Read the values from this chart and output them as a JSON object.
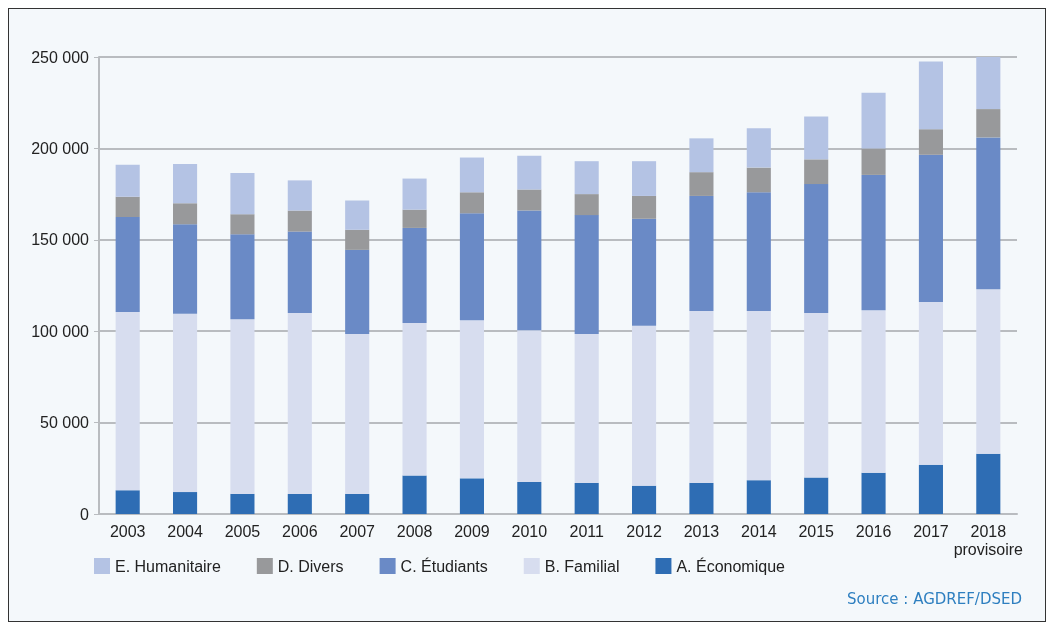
{
  "chart_data": {
    "type": "bar",
    "stacked": true,
    "categories": [
      "2003",
      "2004",
      "2005",
      "2006",
      "2007",
      "2008",
      "2009",
      "2010",
      "2011",
      "2012",
      "2013",
      "2014",
      "2015",
      "2016",
      "2017",
      "2018\nprovisoire"
    ],
    "series": [
      {
        "name": "A. Économique",
        "color": "#2e6db4",
        "values": [
          13000,
          12000,
          11000,
          11000,
          11000,
          21000,
          19500,
          17500,
          17000,
          15500,
          17000,
          18500,
          20000,
          22500,
          27000,
          33000
        ]
      },
      {
        "name": "B. Familial",
        "color": "#d7ddef",
        "values": [
          97500,
          97500,
          95500,
          99000,
          87500,
          83500,
          86500,
          83000,
          81500,
          87500,
          94000,
          92500,
          90000,
          89000,
          89000,
          90000
        ]
      },
      {
        "name": "C. Étudiants",
        "color": "#6a8ac6",
        "values": [
          52000,
          49000,
          46500,
          44500,
          46000,
          52000,
          58500,
          65500,
          65000,
          58500,
          63000,
          65000,
          70500,
          74000,
          80500,
          83000
        ]
      },
      {
        "name": "D. Divers",
        "color": "#98999b",
        "values": [
          11000,
          11500,
          11000,
          11500,
          11000,
          10000,
          11500,
          11500,
          11500,
          12500,
          13000,
          13500,
          13500,
          14500,
          14000,
          15500
        ]
      },
      {
        "name": "E. Humanitaire",
        "color": "#b4c3e4",
        "values": [
          17500,
          21500,
          22500,
          16500,
          16000,
          17000,
          19000,
          18500,
          18000,
          19000,
          18500,
          21500,
          23500,
          30500,
          37000,
          28500
        ]
      }
    ],
    "ylim": [
      0,
      250000
    ],
    "yticks": [
      0,
      {
        "value": 50000,
        "label": "50 000"
      },
      {
        "value": 100000,
        "label": "100 000"
      },
      {
        "value": 150000,
        "label": "150 000"
      },
      {
        "value": 200000,
        "label": "200 000"
      },
      {
        "value": 250000,
        "label": "250 000"
      }
    ],
    "grid": "y",
    "legend": "bottom",
    "annotations": [
      "Source : AGDREF/DSED"
    ]
  }
}
